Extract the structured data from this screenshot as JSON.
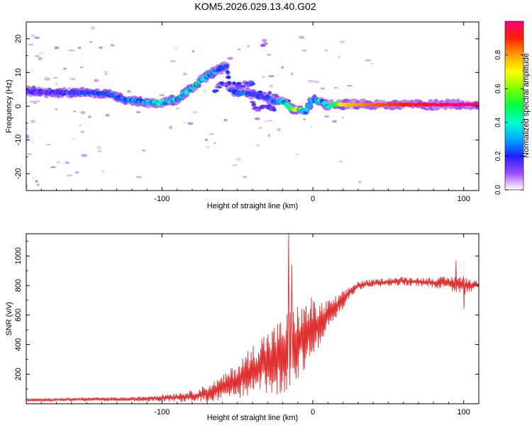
{
  "title": "KOM5.2026.029.13.40.G02",
  "chart_data": [
    {
      "type": "heatmap",
      "title": "KOM5.2026.029.13.40.G02",
      "xlabel": "Height of straight line (km)",
      "ylabel": "Frequency (Hz)",
      "xlim": [
        -190,
        110
      ],
      "ylim": [
        -25,
        25
      ],
      "xticks": [
        -100,
        0,
        100
      ],
      "xtick_labels": [
        "-100",
        "0",
        "100"
      ],
      "yticks": [
        -20,
        -10,
        0,
        10,
        20
      ],
      "ytick_labels": [
        "-20",
        "-10",
        "0",
        "10",
        "20"
      ],
      "colorbar": {
        "label": "Normalized spectral amplitude",
        "range": [
          0,
          1
        ],
        "ticks": [
          0.0,
          0.2,
          0.4,
          0.6,
          0.8
        ],
        "tick_labels": [
          "0.0",
          "0.2",
          "0.4",
          "0.6",
          "0.8"
        ]
      },
      "ridge": {
        "x": [
          -190,
          -175,
          -160,
          -145,
          -135,
          -125,
          -115,
          -105,
          -100,
          -95,
          -90,
          -85,
          -80,
          -75,
          -70,
          -65,
          -60,
          -57,
          -55,
          -50,
          -45,
          -40,
          -35,
          -30,
          -25,
          -20,
          -15,
          -10,
          -5,
          0,
          5,
          10,
          15,
          20,
          40,
          60,
          80,
          100,
          110
        ],
        "frequency": [
          4.5,
          4.0,
          4.0,
          4.0,
          3.5,
          2.0,
          1.5,
          1.0,
          1.0,
          1.5,
          2.0,
          4.0,
          5.5,
          7.5,
          9.0,
          10.5,
          11.5,
          12.0,
          5.0,
          4.0,
          4.0,
          3.5,
          3.0,
          2.5,
          1.0,
          1.5,
          -0.5,
          -1.0,
          -1.5,
          2.0,
          1.5,
          0.0,
          0.5,
          0.5,
          0.5,
          0.5,
          0.5,
          0.5,
          0.5
        ],
        "amplitude": [
          0.15,
          0.15,
          0.18,
          0.2,
          0.22,
          0.25,
          0.3,
          0.35,
          0.3,
          0.32,
          0.35,
          0.3,
          0.32,
          0.35,
          0.3,
          0.28,
          0.25,
          0.22,
          0.2,
          0.22,
          0.25,
          0.22,
          0.2,
          0.2,
          0.22,
          0.3,
          0.45,
          0.55,
          0.35,
          0.35,
          0.3,
          0.35,
          0.5,
          0.75,
          0.85,
          0.9,
          0.95,
          1.0,
          0.95
        ]
      },
      "secondary_branches": [
        {
          "x": [
            -65,
            -60,
            -55,
            -50,
            -45,
            -40
          ],
          "frequency": [
            5.0,
            6.5,
            6.5,
            6.0,
            6.5,
            7.0
          ],
          "amplitude": 0.2
        },
        {
          "x": [
            -35,
            -30,
            -25,
            -20,
            -15
          ],
          "frequency": [
            3.5,
            3.5,
            2.5,
            1.5,
            1.0
          ],
          "amplitude": 0.2
        },
        {
          "x": [
            -40,
            -35,
            -30,
            -25
          ],
          "frequency": [
            0.5,
            -1.0,
            0.0,
            -1.0
          ],
          "amplitude": 0.15
        },
        {
          "x": [
            -33,
            -32,
            -31
          ],
          "frequency": [
            18.0,
            19.0,
            18.0
          ],
          "amplitude": 0.15
        }
      ]
    },
    {
      "type": "line",
      "xlabel": "Height of straight line (km)",
      "ylabel": "SNR (v/v)",
      "xlim": [
        -190,
        110
      ],
      "ylim": [
        0,
        1150
      ],
      "xticks": [
        -100,
        0,
        100
      ],
      "xtick_labels": [
        "-100",
        "0",
        "100"
      ],
      "yticks": [
        200,
        400,
        600,
        800,
        1000
      ],
      "ytick_labels": [
        "200",
        "400",
        "600",
        "800",
        "1000"
      ],
      "color": "#e03030",
      "envelope": {
        "x": [
          -190,
          -150,
          -120,
          -100,
          -90,
          -80,
          -70,
          -60,
          -50,
          -40,
          -35,
          -30,
          -25,
          -20,
          -15,
          -10,
          -5,
          0,
          5,
          10,
          15,
          20,
          25,
          30,
          40,
          50,
          60,
          70,
          80,
          90,
          95,
          100,
          110
        ],
        "mean": [
          25,
          30,
          30,
          40,
          45,
          50,
          70,
          110,
          160,
          220,
          260,
          280,
          300,
          320,
          380,
          420,
          460,
          500,
          540,
          600,
          650,
          700,
          760,
          800,
          815,
          825,
          830,
          825,
          820,
          815,
          810,
          800,
          805
        ],
        "spread": [
          10,
          12,
          15,
          25,
          30,
          40,
          60,
          80,
          120,
          180,
          200,
          220,
          240,
          260,
          280,
          250,
          220,
          200,
          150,
          100,
          80,
          60,
          40,
          30,
          25,
          30,
          30,
          30,
          35,
          45,
          60,
          70,
          20
        ]
      },
      "spikes": [
        {
          "x": -16,
          "y": 1150
        },
        {
          "x": -14,
          "y": 940
        },
        {
          "x": -1,
          "y": 720
        },
        {
          "x": 95,
          "y": 970
        },
        {
          "x": 100,
          "y": 640
        }
      ]
    }
  ]
}
